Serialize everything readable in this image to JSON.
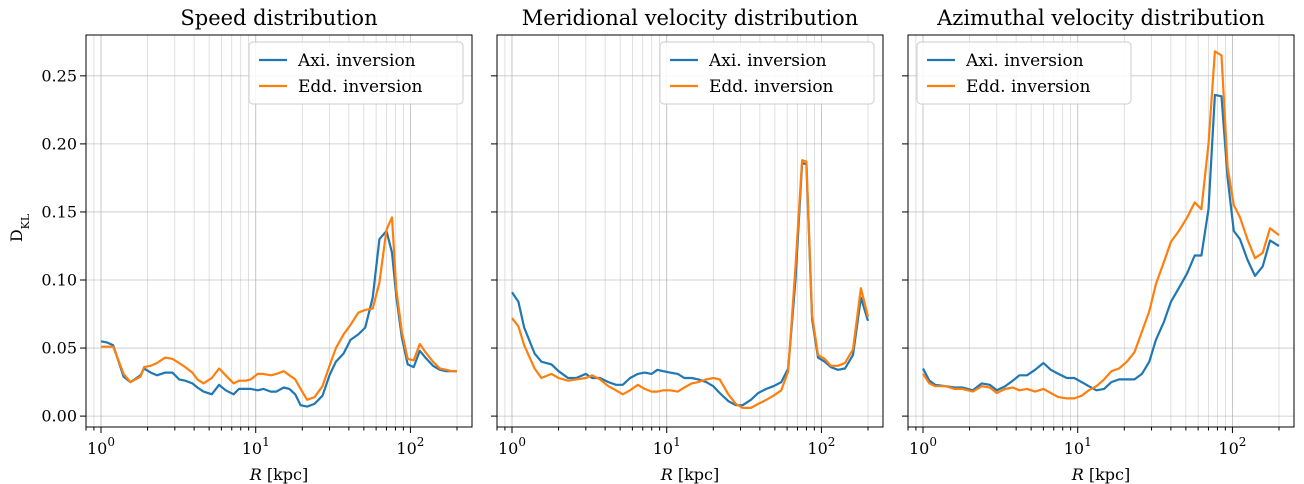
{
  "figure": {
    "ylabel": "D",
    "ylabel_sub": "KL"
  },
  "colors": {
    "axi": "#1f77b4",
    "edd": "#ff7f0e",
    "grid": "#b0b0b0"
  },
  "chart_data": [
    {
      "type": "line",
      "title": "Speed distribution",
      "xlabel_var": "R",
      "xlabel_unit": " [kpc]",
      "xscale": "log",
      "xlim": [
        0.8,
        250
      ],
      "ylim": [
        -0.008,
        0.28
      ],
      "x_ticks": [
        {
          "value": 1,
          "mant": "10",
          "exp": "0"
        },
        {
          "value": 10,
          "mant": "10",
          "exp": "1"
        },
        {
          "value": 100,
          "mant": "10",
          "exp": "2"
        }
      ],
      "y_ticks": [
        "0.00",
        "0.05",
        "0.10",
        "0.15",
        "0.20",
        "0.25"
      ],
      "show_y_ticklabels": true,
      "grid": true,
      "legend_position": "top-right",
      "series": [
        {
          "name": "Axi. inversion",
          "color": "#1f77b4",
          "x": [
            1.0,
            1.1,
            1.2,
            1.4,
            1.55,
            1.8,
            1.9,
            2.1,
            2.3,
            2.6,
            2.9,
            3.2,
            3.5,
            3.9,
            4.2,
            4.6,
            5.2,
            5.8,
            6.4,
            7.2,
            7.8,
            8.6,
            9.3,
            10.3,
            11.2,
            12.5,
            13.6,
            15.2,
            16.5,
            18.0,
            19.5,
            21.5,
            24.0,
            27.0,
            30.0,
            33.0,
            37.0,
            41.0,
            46.0,
            51.0,
            57.0,
            63.0,
            70.0,
            76.0,
            81.0,
            88.0,
            96.0,
            105.0,
            115.0,
            125.0,
            140.0,
            155.0,
            170.0,
            185.0,
            200.0
          ],
          "y": [
            0.055,
            0.054,
            0.052,
            0.029,
            0.025,
            0.03,
            0.035,
            0.032,
            0.03,
            0.032,
            0.032,
            0.027,
            0.026,
            0.024,
            0.021,
            0.018,
            0.016,
            0.023,
            0.019,
            0.016,
            0.02,
            0.02,
            0.02,
            0.019,
            0.02,
            0.018,
            0.018,
            0.021,
            0.02,
            0.016,
            0.008,
            0.007,
            0.009,
            0.015,
            0.03,
            0.04,
            0.046,
            0.056,
            0.06,
            0.065,
            0.087,
            0.13,
            0.136,
            0.12,
            0.088,
            0.058,
            0.038,
            0.036,
            0.048,
            0.043,
            0.037,
            0.034,
            0.033,
            0.033,
            0.033
          ]
        },
        {
          "name": "Edd. inversion",
          "color": "#ff7f0e",
          "x": [
            1.0,
            1.1,
            1.2,
            1.4,
            1.55,
            1.8,
            1.9,
            2.1,
            2.3,
            2.6,
            2.9,
            3.2,
            3.5,
            3.9,
            4.2,
            4.6,
            5.2,
            5.8,
            6.4,
            7.2,
            7.8,
            8.6,
            9.3,
            10.3,
            11.2,
            12.5,
            13.6,
            15.2,
            16.5,
            18.0,
            19.5,
            21.5,
            24.0,
            27.0,
            30.0,
            33.0,
            37.0,
            41.0,
            46.0,
            51.0,
            57.0,
            63.0,
            70.0,
            76.0,
            81.0,
            88.0,
            96.0,
            105.0,
            115.0,
            125.0,
            140.0,
            155.0,
            170.0,
            185.0,
            200.0
          ],
          "y": [
            0.051,
            0.051,
            0.051,
            0.031,
            0.025,
            0.029,
            0.036,
            0.037,
            0.039,
            0.043,
            0.042,
            0.039,
            0.036,
            0.032,
            0.027,
            0.024,
            0.028,
            0.035,
            0.03,
            0.024,
            0.026,
            0.026,
            0.027,
            0.031,
            0.031,
            0.03,
            0.031,
            0.033,
            0.03,
            0.027,
            0.02,
            0.012,
            0.014,
            0.022,
            0.037,
            0.05,
            0.06,
            0.067,
            0.076,
            0.078,
            0.079,
            0.098,
            0.137,
            0.146,
            0.093,
            0.062,
            0.042,
            0.041,
            0.053,
            0.047,
            0.04,
            0.035,
            0.034,
            0.033,
            0.033
          ]
        }
      ]
    },
    {
      "type": "line",
      "title": "Meridional velocity distribution",
      "xlabel_var": "R",
      "xlabel_unit": " [kpc]",
      "xscale": "log",
      "xlim": [
        0.8,
        250
      ],
      "ylim": [
        -0.008,
        0.28
      ],
      "x_ticks": [
        {
          "value": 1,
          "mant": "10",
          "exp": "0"
        },
        {
          "value": 10,
          "mant": "10",
          "exp": "1"
        },
        {
          "value": 100,
          "mant": "10",
          "exp": "2"
        }
      ],
      "y_ticks": [
        "0.00",
        "0.05",
        "0.10",
        "0.15",
        "0.20",
        "0.25"
      ],
      "show_y_ticklabels": false,
      "grid": true,
      "legend_position": "top-right",
      "series": [
        {
          "name": "Axi. inversion",
          "color": "#1f77b4",
          "x": [
            1.0,
            1.1,
            1.2,
            1.4,
            1.55,
            1.8,
            2.0,
            2.3,
            2.6,
            3.0,
            3.3,
            3.7,
            4.2,
            4.7,
            5.2,
            5.8,
            6.5,
            7.2,
            8.0,
            8.7,
            9.5,
            10.5,
            11.8,
            13.0,
            14.5,
            16.0,
            18.0,
            20.0,
            22.0,
            25.0,
            28.0,
            31.0,
            35.0,
            39.0,
            44.0,
            49.0,
            55.0,
            61.0,
            68.0,
            75.0,
            80.0,
            87.0,
            95.0,
            105.0,
            115.0,
            128.0,
            142.0,
            160.0,
            180.0,
            200.0
          ],
          "y": [
            0.091,
            0.084,
            0.065,
            0.046,
            0.04,
            0.038,
            0.033,
            0.028,
            0.028,
            0.031,
            0.028,
            0.028,
            0.025,
            0.023,
            0.023,
            0.028,
            0.031,
            0.032,
            0.031,
            0.034,
            0.033,
            0.032,
            0.031,
            0.028,
            0.028,
            0.027,
            0.025,
            0.022,
            0.017,
            0.011,
            0.008,
            0.008,
            0.012,
            0.017,
            0.02,
            0.022,
            0.025,
            0.035,
            0.1,
            0.186,
            0.185,
            0.071,
            0.043,
            0.04,
            0.036,
            0.034,
            0.035,
            0.045,
            0.087,
            0.07
          ]
        },
        {
          "name": "Edd. inversion",
          "color": "#ff7f0e",
          "x": [
            1.0,
            1.1,
            1.2,
            1.4,
            1.55,
            1.8,
            2.0,
            2.3,
            2.6,
            3.0,
            3.3,
            3.7,
            4.2,
            4.7,
            5.2,
            5.8,
            6.5,
            7.2,
            8.0,
            8.7,
            9.5,
            10.5,
            11.8,
            13.0,
            14.5,
            16.0,
            18.0,
            20.0,
            22.0,
            25.0,
            28.0,
            31.0,
            35.0,
            39.0,
            44.0,
            49.0,
            55.0,
            61.0,
            68.0,
            75.0,
            80.0,
            87.0,
            95.0,
            105.0,
            115.0,
            128.0,
            142.0,
            160.0,
            180.0,
            200.0
          ],
          "y": [
            0.072,
            0.066,
            0.052,
            0.035,
            0.028,
            0.031,
            0.028,
            0.026,
            0.027,
            0.028,
            0.03,
            0.027,
            0.022,
            0.019,
            0.016,
            0.019,
            0.023,
            0.02,
            0.018,
            0.018,
            0.019,
            0.019,
            0.018,
            0.021,
            0.024,
            0.025,
            0.027,
            0.028,
            0.027,
            0.016,
            0.009,
            0.006,
            0.006,
            0.009,
            0.012,
            0.015,
            0.019,
            0.033,
            0.11,
            0.188,
            0.187,
            0.074,
            0.045,
            0.042,
            0.037,
            0.037,
            0.039,
            0.049,
            0.094,
            0.073
          ]
        }
      ]
    },
    {
      "type": "line",
      "title": "Azimuthal velocity distribution",
      "xlabel_var": "R",
      "xlabel_unit": " [kpc]",
      "xscale": "log",
      "xlim": [
        0.8,
        250
      ],
      "ylim": [
        -0.008,
        0.28
      ],
      "x_ticks": [
        {
          "value": 1,
          "mant": "10",
          "exp": "0"
        },
        {
          "value": 10,
          "mant": "10",
          "exp": "1"
        },
        {
          "value": 100,
          "mant": "10",
          "exp": "2"
        }
      ],
      "y_ticks": [
        "0.00",
        "0.05",
        "0.10",
        "0.15",
        "0.20",
        "0.25"
      ],
      "show_y_ticklabels": false,
      "grid": true,
      "legend_position": "top-left",
      "series": [
        {
          "name": "Axi. inversion",
          "color": "#1f77b4",
          "x": [
            1.0,
            1.1,
            1.2,
            1.4,
            1.6,
            1.8,
            2.1,
            2.4,
            2.7,
            3.0,
            3.4,
            3.8,
            4.2,
            4.7,
            5.3,
            6.0,
            6.7,
            7.5,
            8.5,
            9.5,
            10.6,
            11.8,
            13.2,
            14.8,
            16.5,
            18.5,
            20.8,
            23.3,
            26.0,
            29.0,
            32.0,
            36.0,
            40.0,
            45.0,
            51.0,
            57.0,
            63.0,
            70.0,
            77.0,
            85.0,
            93.0,
            102.0,
            112.0,
            125.0,
            140.0,
            157.0,
            175.0,
            200.0
          ],
          "y": [
            0.035,
            0.026,
            0.023,
            0.022,
            0.021,
            0.021,
            0.019,
            0.024,
            0.023,
            0.019,
            0.022,
            0.026,
            0.03,
            0.03,
            0.034,
            0.039,
            0.034,
            0.031,
            0.028,
            0.028,
            0.025,
            0.022,
            0.019,
            0.02,
            0.025,
            0.027,
            0.027,
            0.027,
            0.031,
            0.04,
            0.056,
            0.069,
            0.084,
            0.094,
            0.105,
            0.118,
            0.118,
            0.152,
            0.236,
            0.235,
            0.175,
            0.136,
            0.13,
            0.115,
            0.103,
            0.11,
            0.129,
            0.125
          ]
        },
        {
          "name": "Edd. inversion",
          "color": "#ff7f0e",
          "x": [
            1.0,
            1.1,
            1.2,
            1.4,
            1.6,
            1.8,
            2.1,
            2.4,
            2.7,
            3.0,
            3.4,
            3.8,
            4.2,
            4.7,
            5.3,
            6.0,
            6.7,
            7.5,
            8.5,
            9.5,
            10.6,
            11.8,
            13.2,
            14.8,
            16.5,
            18.5,
            20.8,
            23.3,
            26.0,
            29.0,
            32.0,
            36.0,
            40.0,
            45.0,
            51.0,
            57.0,
            63.0,
            70.0,
            77.0,
            85.0,
            93.0,
            102.0,
            112.0,
            125.0,
            140.0,
            157.0,
            175.0,
            200.0
          ],
          "y": [
            0.031,
            0.024,
            0.022,
            0.022,
            0.02,
            0.02,
            0.018,
            0.022,
            0.021,
            0.017,
            0.02,
            0.021,
            0.019,
            0.02,
            0.018,
            0.02,
            0.017,
            0.014,
            0.013,
            0.013,
            0.015,
            0.019,
            0.022,
            0.027,
            0.033,
            0.035,
            0.04,
            0.047,
            0.062,
            0.077,
            0.097,
            0.113,
            0.128,
            0.136,
            0.146,
            0.157,
            0.152,
            0.2,
            0.268,
            0.265,
            0.183,
            0.155,
            0.146,
            0.13,
            0.116,
            0.12,
            0.138,
            0.133
          ]
        }
      ]
    }
  ]
}
